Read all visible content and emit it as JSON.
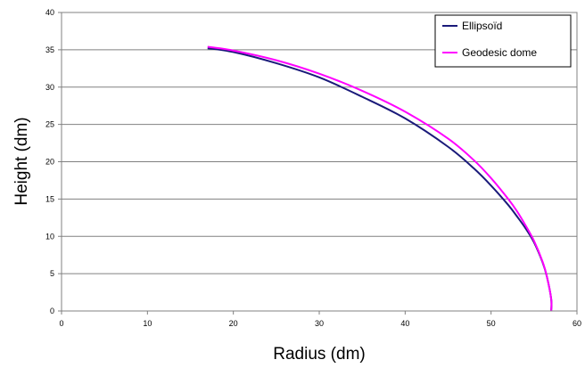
{
  "chart_data": {
    "type": "line",
    "xlabel": "Radius (dm)",
    "ylabel": "Height (dm)",
    "xlim": [
      0,
      60
    ],
    "ylim": [
      0,
      40
    ],
    "xticks": [
      0,
      10,
      20,
      30,
      40,
      50,
      60
    ],
    "yticks": [
      0,
      5,
      10,
      15,
      20,
      25,
      30,
      35,
      40
    ],
    "grid": "horizontal",
    "legend_position": "top-right",
    "series": [
      {
        "name": "Ellipsoïd",
        "color": "#1a1a7a",
        "x": [
          17.0,
          20.0,
          25.0,
          30.0,
          35.0,
          40.0,
          45.0,
          48.0,
          50.0,
          52.0,
          53.0,
          54.0,
          55.0,
          56.0,
          56.5,
          57.0,
          57.0
        ],
        "y": [
          35.2,
          34.7,
          33.2,
          31.3,
          28.7,
          25.8,
          22.0,
          19.1,
          16.8,
          14.2,
          12.7,
          11.1,
          9.2,
          6.5,
          4.6,
          1.6,
          0.0
        ]
      },
      {
        "name": "Geodesic dome",
        "color": "#ff00ff",
        "x": [
          17.0,
          20.0,
          25.0,
          30.0,
          35.0,
          40.0,
          45.0,
          48.0,
          50.0,
          52.0,
          53.0,
          54.0,
          55.0,
          56.0,
          56.5,
          57.0,
          57.0
        ],
        "y": [
          35.4,
          34.9,
          33.6,
          31.8,
          29.5,
          26.7,
          23.1,
          20.2,
          17.8,
          15.0,
          13.4,
          11.5,
          9.4,
          6.6,
          4.6,
          1.6,
          0.0
        ]
      }
    ]
  }
}
